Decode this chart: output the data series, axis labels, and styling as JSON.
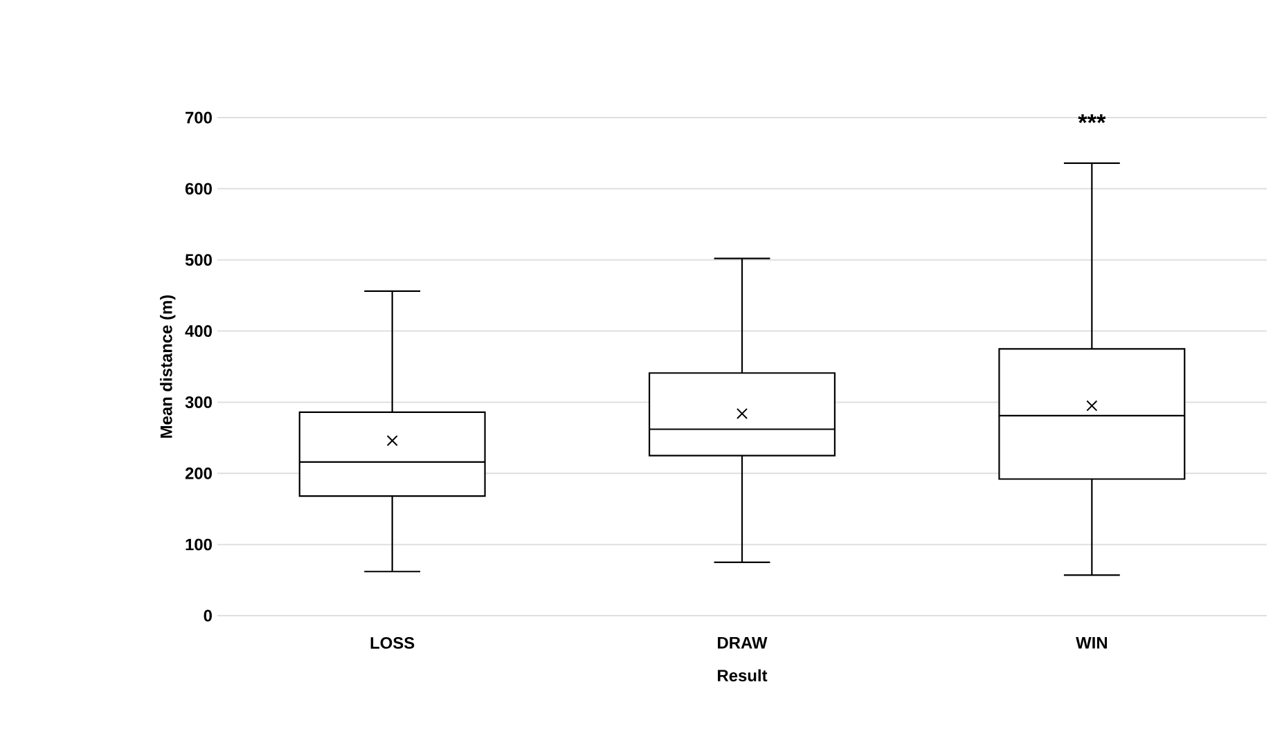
{
  "chart_data": {
    "type": "box",
    "xlabel": "Result",
    "ylabel": "Mean distance (m)",
    "categories": [
      "LOSS",
      "DRAW",
      "WIN"
    ],
    "boxes": [
      {
        "low": 62,
        "q1": 168,
        "median": 216,
        "q3": 286,
        "high": 456,
        "mean": 246
      },
      {
        "low": 75,
        "q1": 225,
        "median": 262,
        "q3": 341,
        "high": 502,
        "mean": 284
      },
      {
        "low": 57,
        "q1": 192,
        "median": 281,
        "q3": 375,
        "high": 636,
        "mean": 295
      }
    ],
    "color": "#000000",
    "ylim": [
      0,
      700
    ],
    "yticks": [
      0,
      100,
      200,
      300,
      400,
      500,
      600,
      700
    ],
    "grid": "y",
    "annotations": [
      "***"
    ]
  }
}
